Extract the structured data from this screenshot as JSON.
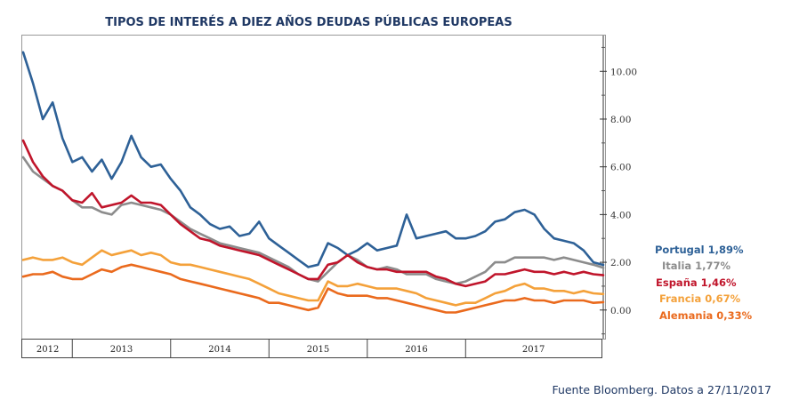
{
  "chart_data": {
    "type": "line",
    "title": "TIPOS DE INTERÉS A DIEZ AÑOS DEUDAS PÚBLICAS EUROPEAS",
    "source": "Fuente Bloomberg. Datos a 27/11/2017",
    "xlabel": "",
    "ylabel": "",
    "x_range": [
      2012.0,
      2017.9
    ],
    "ylim": [
      -1.2,
      11.5
    ],
    "y_ticks": [
      {
        "value": 0,
        "label": "0.00"
      },
      {
        "value": 2,
        "label": "2.00"
      },
      {
        "value": 4,
        "label": "4.00"
      },
      {
        "value": 6,
        "label": "6.00"
      },
      {
        "value": 8,
        "label": "8.00"
      },
      {
        "value": 10,
        "label": "10.00"
      }
    ],
    "x_periods": [
      {
        "label": "2012",
        "start": 2012.0,
        "end": 2012.5
      },
      {
        "label": "2013",
        "start": 2012.5,
        "end": 2013.5
      },
      {
        "label": "2014",
        "start": 2013.5,
        "end": 2014.5
      },
      {
        "label": "2015",
        "start": 2014.5,
        "end": 2015.5
      },
      {
        "label": "2016",
        "start": 2015.5,
        "end": 2016.5
      },
      {
        "label": "2017",
        "start": 2016.5,
        "end": 2017.9
      }
    ],
    "series": [
      {
        "name": "Portugal",
        "legend": "Portugal 1,89%",
        "color": "#2e6197",
        "x": [
          2012.0,
          2012.1,
          2012.2,
          2012.3,
          2012.4,
          2012.5,
          2012.6,
          2012.7,
          2012.8,
          2012.9,
          2013.0,
          2013.1,
          2013.2,
          2013.3,
          2013.4,
          2013.5,
          2013.6,
          2013.7,
          2013.8,
          2013.9,
          2014.0,
          2014.1,
          2014.2,
          2014.3,
          2014.4,
          2014.5,
          2014.6,
          2014.7,
          2014.8,
          2014.9,
          2015.0,
          2015.1,
          2015.2,
          2015.3,
          2015.4,
          2015.5,
          2015.6,
          2015.7,
          2015.8,
          2015.9,
          2016.0,
          2016.1,
          2016.2,
          2016.3,
          2016.4,
          2016.5,
          2016.6,
          2016.7,
          2016.8,
          2016.9,
          2017.0,
          2017.1,
          2017.2,
          2017.3,
          2017.4,
          2017.5,
          2017.6,
          2017.7,
          2017.8,
          2017.9
        ],
        "values": [
          10.8,
          9.5,
          8.0,
          8.7,
          7.2,
          6.2,
          6.4,
          5.8,
          6.3,
          5.5,
          6.2,
          7.3,
          6.4,
          6.0,
          6.1,
          5.5,
          5.0,
          4.3,
          4.0,
          3.6,
          3.4,
          3.5,
          3.1,
          3.2,
          3.7,
          3.0,
          2.7,
          2.4,
          2.1,
          1.8,
          1.9,
          2.8,
          2.6,
          2.3,
          2.5,
          2.8,
          2.5,
          2.6,
          2.7,
          4.0,
          3.0,
          3.1,
          3.2,
          3.3,
          3.0,
          3.0,
          3.1,
          3.3,
          3.7,
          3.8,
          4.1,
          4.2,
          4.0,
          3.4,
          3.0,
          2.9,
          2.8,
          2.5,
          2.0,
          1.89
        ]
      },
      {
        "name": "Italia",
        "legend": "Italia 1,77%",
        "color": "#8c8c8c",
        "x": [
          2012.0,
          2012.1,
          2012.2,
          2012.3,
          2012.4,
          2012.5,
          2012.6,
          2012.7,
          2012.8,
          2012.9,
          2013.0,
          2013.1,
          2013.2,
          2013.3,
          2013.4,
          2013.5,
          2013.6,
          2013.7,
          2013.8,
          2013.9,
          2014.0,
          2014.1,
          2014.2,
          2014.3,
          2014.4,
          2014.5,
          2014.6,
          2014.7,
          2014.8,
          2014.9,
          2015.0,
          2015.1,
          2015.2,
          2015.3,
          2015.4,
          2015.5,
          2015.6,
          2015.7,
          2015.8,
          2015.9,
          2016.0,
          2016.1,
          2016.2,
          2016.3,
          2016.4,
          2016.5,
          2016.6,
          2016.7,
          2016.8,
          2016.9,
          2017.0,
          2017.1,
          2017.2,
          2017.3,
          2017.4,
          2017.5,
          2017.6,
          2017.7,
          2017.8,
          2017.9
        ],
        "values": [
          6.4,
          5.8,
          5.5,
          5.2,
          5.0,
          4.6,
          4.3,
          4.3,
          4.1,
          4.0,
          4.4,
          4.5,
          4.4,
          4.3,
          4.2,
          4.0,
          3.7,
          3.4,
          3.2,
          3.0,
          2.8,
          2.7,
          2.6,
          2.5,
          2.4,
          2.2,
          2.0,
          1.8,
          1.5,
          1.3,
          1.2,
          1.6,
          2.0,
          2.3,
          2.1,
          1.8,
          1.7,
          1.8,
          1.7,
          1.5,
          1.5,
          1.5,
          1.3,
          1.2,
          1.1,
          1.2,
          1.4,
          1.6,
          2.0,
          2.0,
          2.2,
          2.2,
          2.2,
          2.2,
          2.1,
          2.2,
          2.1,
          2.0,
          1.9,
          1.77
        ]
      },
      {
        "name": "España",
        "legend": "España 1,46%",
        "color": "#c0152b",
        "x": [
          2012.0,
          2012.1,
          2012.2,
          2012.3,
          2012.4,
          2012.5,
          2012.6,
          2012.7,
          2012.8,
          2012.9,
          2013.0,
          2013.1,
          2013.2,
          2013.3,
          2013.4,
          2013.5,
          2013.6,
          2013.7,
          2013.8,
          2013.9,
          2014.0,
          2014.1,
          2014.2,
          2014.3,
          2014.4,
          2014.5,
          2014.6,
          2014.7,
          2014.8,
          2014.9,
          2015.0,
          2015.1,
          2015.2,
          2015.3,
          2015.4,
          2015.5,
          2015.6,
          2015.7,
          2015.8,
          2015.9,
          2016.0,
          2016.1,
          2016.2,
          2016.3,
          2016.4,
          2016.5,
          2016.6,
          2016.7,
          2016.8,
          2016.9,
          2017.0,
          2017.1,
          2017.2,
          2017.3,
          2017.4,
          2017.5,
          2017.6,
          2017.7,
          2017.8,
          2017.9
        ],
        "values": [
          7.1,
          6.2,
          5.6,
          5.2,
          5.0,
          4.6,
          4.5,
          4.9,
          4.3,
          4.4,
          4.5,
          4.8,
          4.5,
          4.5,
          4.4,
          4.0,
          3.6,
          3.3,
          3.0,
          2.9,
          2.7,
          2.6,
          2.5,
          2.4,
          2.3,
          2.1,
          1.9,
          1.7,
          1.5,
          1.3,
          1.3,
          1.9,
          2.0,
          2.3,
          2.0,
          1.8,
          1.7,
          1.7,
          1.6,
          1.6,
          1.6,
          1.6,
          1.4,
          1.3,
          1.1,
          1.0,
          1.1,
          1.2,
          1.5,
          1.5,
          1.6,
          1.7,
          1.6,
          1.6,
          1.5,
          1.6,
          1.5,
          1.6,
          1.5,
          1.46
        ]
      },
      {
        "name": "Francia",
        "legend": "Francia 0,67%",
        "color": "#f4a13a",
        "x": [
          2012.0,
          2012.1,
          2012.2,
          2012.3,
          2012.4,
          2012.5,
          2012.6,
          2012.7,
          2012.8,
          2012.9,
          2013.0,
          2013.1,
          2013.2,
          2013.3,
          2013.4,
          2013.5,
          2013.6,
          2013.7,
          2013.8,
          2013.9,
          2014.0,
          2014.1,
          2014.2,
          2014.3,
          2014.4,
          2014.5,
          2014.6,
          2014.7,
          2014.8,
          2014.9,
          2015.0,
          2015.1,
          2015.2,
          2015.3,
          2015.4,
          2015.5,
          2015.6,
          2015.7,
          2015.8,
          2015.9,
          2016.0,
          2016.1,
          2016.2,
          2016.3,
          2016.4,
          2016.5,
          2016.6,
          2016.7,
          2016.8,
          2016.9,
          2017.0,
          2017.1,
          2017.2,
          2017.3,
          2017.4,
          2017.5,
          2017.6,
          2017.7,
          2017.8,
          2017.9
        ],
        "values": [
          2.1,
          2.2,
          2.1,
          2.1,
          2.2,
          2.0,
          1.9,
          2.2,
          2.5,
          2.3,
          2.4,
          2.5,
          2.3,
          2.4,
          2.3,
          2.0,
          1.9,
          1.9,
          1.8,
          1.7,
          1.6,
          1.5,
          1.4,
          1.3,
          1.1,
          0.9,
          0.7,
          0.6,
          0.5,
          0.4,
          0.4,
          1.2,
          1.0,
          1.0,
          1.1,
          1.0,
          0.9,
          0.9,
          0.9,
          0.8,
          0.7,
          0.5,
          0.4,
          0.3,
          0.2,
          0.3,
          0.3,
          0.5,
          0.7,
          0.8,
          1.0,
          1.1,
          0.9,
          0.9,
          0.8,
          0.8,
          0.7,
          0.8,
          0.7,
          0.67
        ]
      },
      {
        "name": "Alemania",
        "legend": "Alemania 0,33%",
        "color": "#ea6a1d",
        "x": [
          2012.0,
          2012.1,
          2012.2,
          2012.3,
          2012.4,
          2012.5,
          2012.6,
          2012.7,
          2012.8,
          2012.9,
          2013.0,
          2013.1,
          2013.2,
          2013.3,
          2013.4,
          2013.5,
          2013.6,
          2013.7,
          2013.8,
          2013.9,
          2014.0,
          2014.1,
          2014.2,
          2014.3,
          2014.4,
          2014.5,
          2014.6,
          2014.7,
          2014.8,
          2014.9,
          2015.0,
          2015.1,
          2015.2,
          2015.3,
          2015.4,
          2015.5,
          2015.6,
          2015.7,
          2015.8,
          2015.9,
          2016.0,
          2016.1,
          2016.2,
          2016.3,
          2016.4,
          2016.5,
          2016.6,
          2016.7,
          2016.8,
          2016.9,
          2017.0,
          2017.1,
          2017.2,
          2017.3,
          2017.4,
          2017.5,
          2017.6,
          2017.7,
          2017.8,
          2017.9
        ],
        "values": [
          1.4,
          1.5,
          1.5,
          1.6,
          1.4,
          1.3,
          1.3,
          1.5,
          1.7,
          1.6,
          1.8,
          1.9,
          1.8,
          1.7,
          1.6,
          1.5,
          1.3,
          1.2,
          1.1,
          1.0,
          0.9,
          0.8,
          0.7,
          0.6,
          0.5,
          0.3,
          0.3,
          0.2,
          0.1,
          0.0,
          0.1,
          0.9,
          0.7,
          0.6,
          0.6,
          0.6,
          0.5,
          0.5,
          0.4,
          0.3,
          0.2,
          0.1,
          0.0,
          -0.1,
          -0.1,
          0.0,
          0.1,
          0.2,
          0.3,
          0.4,
          0.4,
          0.5,
          0.4,
          0.4,
          0.3,
          0.4,
          0.4,
          0.4,
          0.3,
          0.33
        ]
      }
    ]
  }
}
